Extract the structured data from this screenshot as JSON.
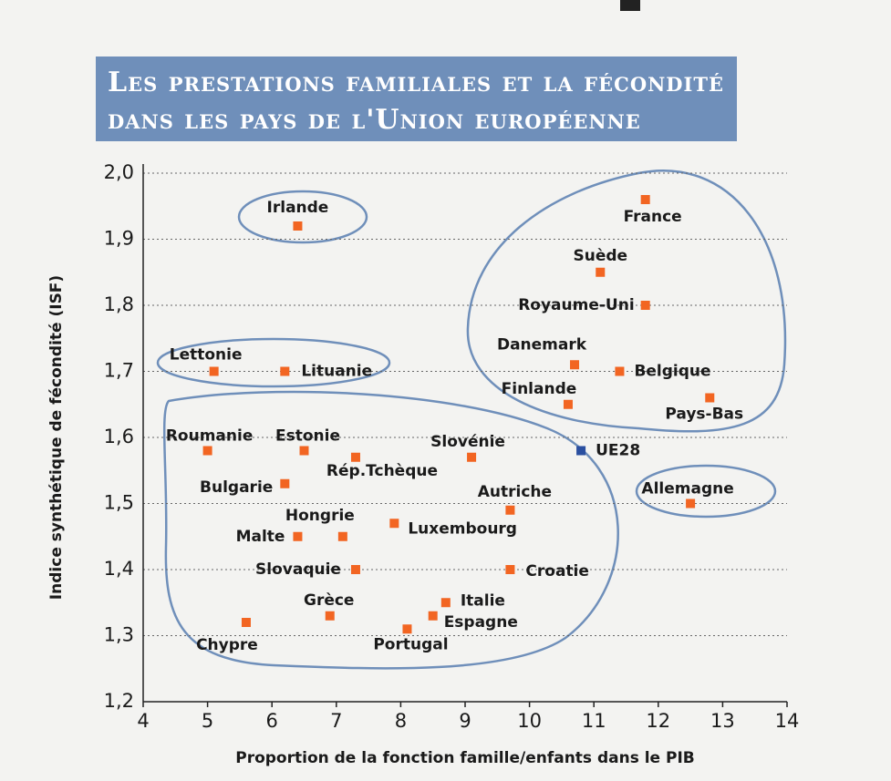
{
  "chart_data": {
    "type": "scatter",
    "title_lines": [
      "Les prestations familiales et la fécondité",
      "dans les pays de l'Union européenne"
    ],
    "x_label": "Proportion de la fonction famille/enfants dans le PIB",
    "y_label": "Indice synthétique de fécondité (ISF)",
    "xlim": [
      4,
      14
    ],
    "xticks": [
      4,
      5,
      6,
      7,
      8,
      9,
      10,
      11,
      12,
      13,
      14
    ],
    "ylim": [
      1.2,
      2.0
    ],
    "yticks": [
      {
        "value": 1.2,
        "label": "1,2"
      },
      {
        "value": 1.3,
        "label": "1,3"
      },
      {
        "value": 1.4,
        "label": "1,4"
      },
      {
        "value": 1.5,
        "label": "1,5"
      },
      {
        "value": 1.6,
        "label": "1,6"
      },
      {
        "value": 1.7,
        "label": "1,7"
      },
      {
        "value": 1.8,
        "label": "1,8"
      },
      {
        "value": 1.9,
        "label": "1,9"
      },
      {
        "value": 2.0,
        "label": "2,0"
      }
    ],
    "grid": true,
    "series": [
      {
        "color": "#f26522",
        "labels": [
          "Irlande",
          "France",
          "Suède",
          "Royaume-Uni",
          "Danemark",
          "Belgique",
          "Finlande",
          "Pays-Bas",
          "Allemagne",
          "Lettonie",
          "Lituanie",
          "Roumanie",
          "Estonie",
          "Rép.Tchèque",
          "Slovénie",
          "Bulgarie",
          "Autriche",
          "Luxembourg",
          "Malte",
          "Hongrie",
          "Slovaquie",
          "Croatie",
          "Italie",
          "Espagne",
          "Grèce",
          "Portugal",
          "Chypre"
        ],
        "x": [
          6.4,
          11.8,
          11.1,
          11.8,
          10.7,
          11.4,
          10.6,
          12.8,
          12.5,
          5.1,
          6.2,
          5.0,
          6.5,
          7.3,
          9.1,
          6.2,
          9.7,
          7.9,
          6.4,
          7.1,
          7.3,
          9.7,
          8.7,
          8.5,
          6.9,
          8.1,
          5.6
        ],
        "y": [
          1.92,
          1.96,
          1.85,
          1.8,
          1.71,
          1.7,
          1.65,
          1.66,
          1.5,
          1.7,
          1.7,
          1.58,
          1.58,
          1.57,
          1.57,
          1.53,
          1.49,
          1.47,
          1.45,
          1.45,
          1.4,
          1.4,
          1.35,
          1.33,
          1.33,
          1.31,
          1.32
        ]
      },
      {
        "color": "#2a4fa0",
        "labels": [
          "UE28"
        ],
        "x": [
          10.8
        ],
        "y": [
          1.58
        ]
      }
    ]
  }
}
